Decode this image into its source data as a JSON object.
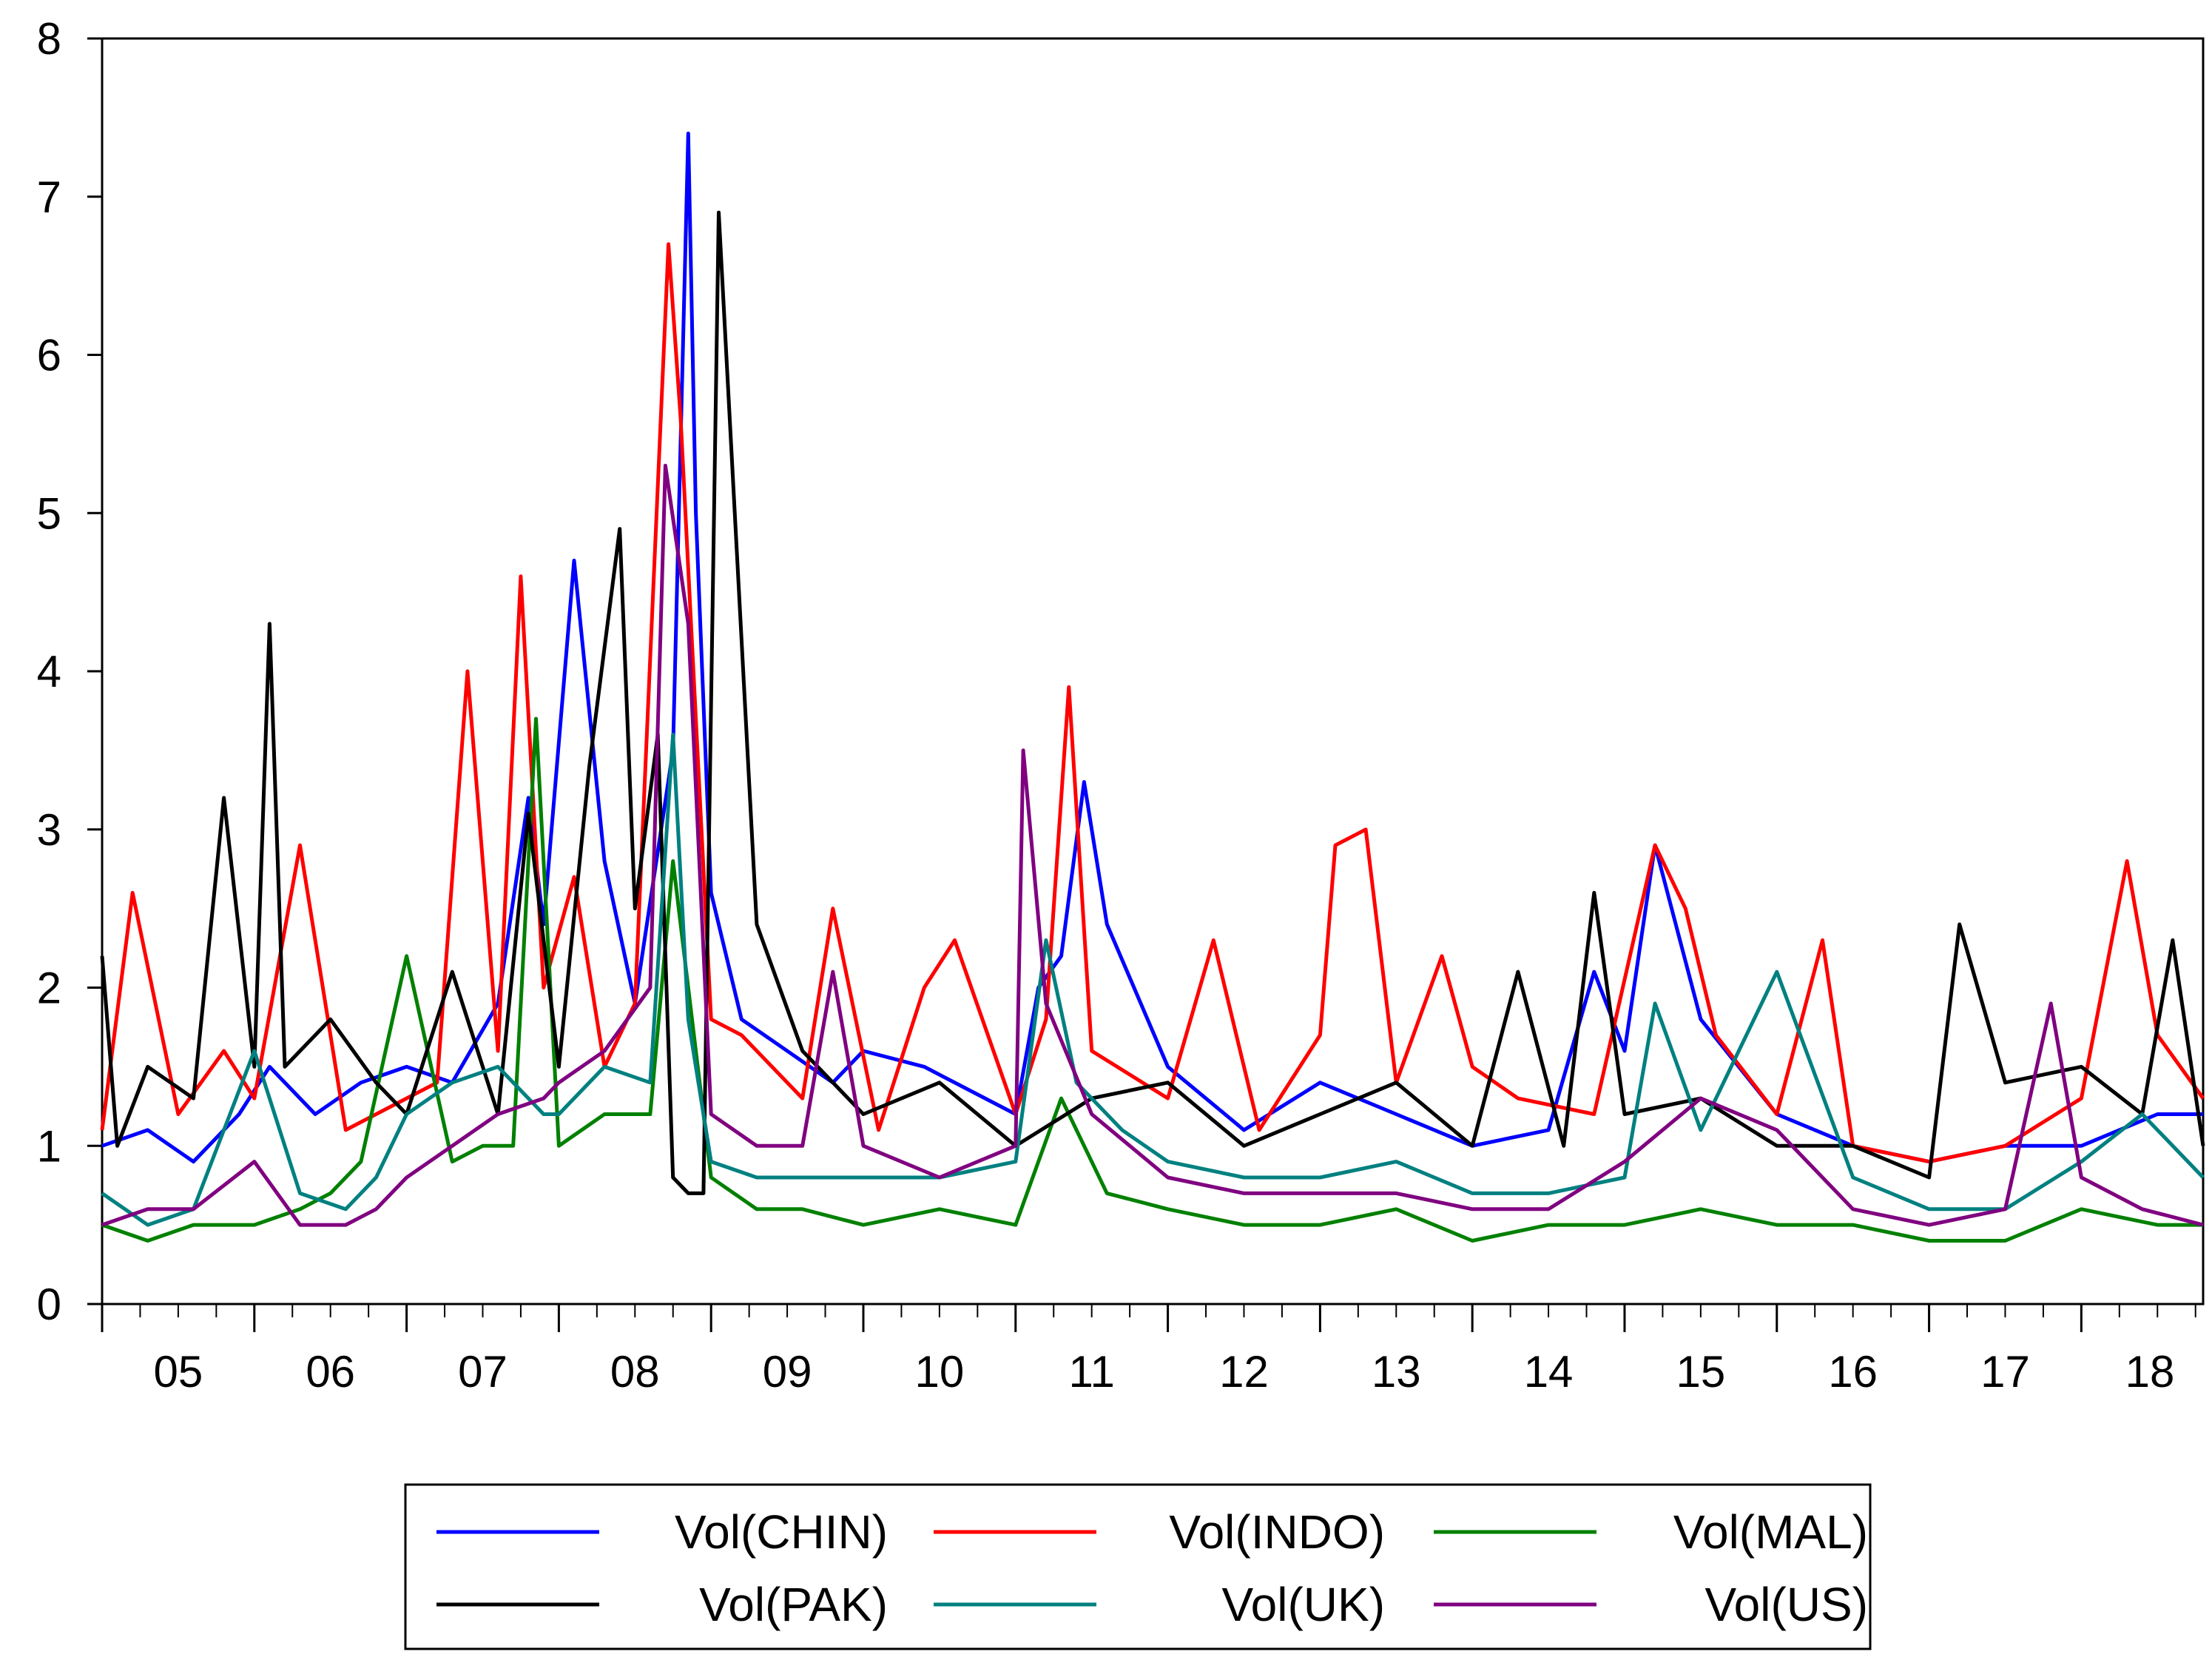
{
  "chart_data": {
    "type": "line",
    "title": "",
    "xlabel": "",
    "ylabel": "",
    "ylim": [
      0,
      8
    ],
    "y_ticks": [
      "0",
      "1",
      "2",
      "3",
      "4",
      "5",
      "6",
      "7",
      "8"
    ],
    "x_range": [
      2005.0,
      2018.8
    ],
    "x_tick_labels": [
      "05",
      "06",
      "07",
      "08",
      "09",
      "10",
      "11",
      "12",
      "13",
      "14",
      "15",
      "16",
      "17",
      "18"
    ],
    "grid": false,
    "legend_position": "bottom",
    "series": [
      {
        "name": "Vol(CHIN)",
        "color": "#0000ff",
        "x": [
          2005.0,
          2005.3,
          2005.6,
          2005.9,
          2006.1,
          2006.4,
          2006.7,
          2007.0,
          2007.3,
          2007.6,
          2007.8,
          2007.9,
          2008.1,
          2008.3,
          2008.5,
          2008.75,
          2008.85,
          2008.9,
          2009.0,
          2009.2,
          2009.5,
          2009.8,
          2010.0,
          2010.4,
          2010.8,
          2011.0,
          2011.15,
          2011.3,
          2011.45,
          2011.6,
          2012.0,
          2012.5,
          2013.0,
          2013.5,
          2014.0,
          2014.5,
          2014.8,
          2015.0,
          2015.2,
          2015.5,
          2016.0,
          2016.5,
          2017.0,
          2017.5,
          2018.0,
          2018.5,
          2018.8
        ],
        "y": [
          1.0,
          1.1,
          0.9,
          1.2,
          1.5,
          1.2,
          1.4,
          1.5,
          1.4,
          1.9,
          3.2,
          2.4,
          4.7,
          2.8,
          1.9,
          3.5,
          7.4,
          5.0,
          2.6,
          1.8,
          1.6,
          1.4,
          1.6,
          1.5,
          1.3,
          1.2,
          2.0,
          2.2,
          3.3,
          2.4,
          1.5,
          1.1,
          1.4,
          1.2,
          1.0,
          1.1,
          2.1,
          1.6,
          2.9,
          1.8,
          1.2,
          1.0,
          0.9,
          1.0,
          1.0,
          1.2,
          1.2
        ]
      },
      {
        "name": "Vol(INDO)",
        "color": "#ff0000",
        "x": [
          2005.0,
          2005.2,
          2005.5,
          2005.8,
          2006.0,
          2006.3,
          2006.6,
          2007.0,
          2007.2,
          2007.4,
          2007.6,
          2007.75,
          2007.9,
          2008.1,
          2008.3,
          2008.5,
          2008.72,
          2008.8,
          2009.0,
          2009.2,
          2009.6,
          2009.8,
          2010.1,
          2010.4,
          2010.6,
          2011.0,
          2011.2,
          2011.35,
          2011.5,
          2012.0,
          2012.3,
          2012.6,
          2013.0,
          2013.1,
          2013.3,
          2013.5,
          2013.8,
          2014.0,
          2014.3,
          2014.8,
          2015.2,
          2015.4,
          2015.6,
          2016.0,
          2016.3,
          2016.5,
          2017.0,
          2017.5,
          2018.0,
          2018.3,
          2018.5,
          2018.8
        ],
        "y": [
          1.1,
          2.6,
          1.2,
          1.6,
          1.3,
          2.9,
          1.1,
          1.3,
          1.4,
          4.0,
          1.6,
          4.6,
          2.0,
          2.7,
          1.5,
          1.9,
          6.7,
          5.6,
          1.8,
          1.7,
          1.3,
          2.5,
          1.1,
          2.0,
          2.3,
          1.2,
          1.8,
          3.9,
          1.6,
          1.3,
          2.3,
          1.1,
          1.7,
          2.9,
          3.0,
          1.4,
          2.2,
          1.5,
          1.3,
          1.2,
          2.9,
          2.5,
          1.7,
          1.2,
          2.3,
          1.0,
          0.9,
          1.0,
          1.3,
          2.8,
          1.7,
          1.3
        ]
      },
      {
        "name": "Vol(MAL)",
        "color": "#008000",
        "x": [
          2005.0,
          2005.3,
          2005.6,
          2006.0,
          2006.3,
          2006.5,
          2006.7,
          2007.0,
          2007.3,
          2007.5,
          2007.7,
          2007.85,
          2008.0,
          2008.3,
          2008.6,
          2008.75,
          2008.9,
          2009.0,
          2009.3,
          2009.6,
          2010.0,
          2010.5,
          2011.0,
          2011.3,
          2011.6,
          2012.0,
          2012.5,
          2013.0,
          2013.5,
          2014.0,
          2014.5,
          2015.0,
          2015.5,
          2016.0,
          2016.5,
          2017.0,
          2017.5,
          2018.0,
          2018.5,
          2018.8
        ],
        "y": [
          0.5,
          0.4,
          0.5,
          0.5,
          0.6,
          0.7,
          0.9,
          2.2,
          0.9,
          1.0,
          1.0,
          3.7,
          1.0,
          1.2,
          1.2,
          2.8,
          1.6,
          0.8,
          0.6,
          0.6,
          0.5,
          0.6,
          0.5,
          1.3,
          0.7,
          0.6,
          0.5,
          0.5,
          0.6,
          0.4,
          0.5,
          0.5,
          0.6,
          0.5,
          0.5,
          0.4,
          0.4,
          0.6,
          0.5,
          0.5
        ]
      },
      {
        "name": "Vol(PAK)",
        "color": "#000000",
        "x": [
          2005.0,
          2005.1,
          2005.3,
          2005.6,
          2005.8,
          2006.0,
          2006.1,
          2006.2,
          2006.5,
          2006.8,
          2007.0,
          2007.3,
          2007.6,
          2007.8,
          2008.0,
          2008.2,
          2008.4,
          2008.5,
          2008.65,
          2008.75,
          2008.85,
          2008.95,
          2009.05,
          2009.3,
          2009.6,
          2010.0,
          2010.5,
          2011.0,
          2011.5,
          2012.0,
          2012.5,
          2013.0,
          2013.5,
          2014.0,
          2014.3,
          2014.6,
          2014.8,
          2015.0,
          2015.5,
          2016.0,
          2016.5,
          2017.0,
          2017.2,
          2017.5,
          2018.0,
          2018.4,
          2018.6,
          2018.8
        ],
        "y": [
          2.2,
          1.0,
          1.5,
          1.3,
          3.2,
          1.5,
          4.3,
          1.5,
          1.8,
          1.4,
          1.2,
          2.1,
          1.2,
          3.1,
          1.5,
          3.4,
          4.9,
          2.5,
          3.6,
          0.8,
          0.7,
          0.7,
          6.9,
          2.4,
          1.6,
          1.2,
          1.4,
          1.0,
          1.3,
          1.4,
          1.0,
          1.2,
          1.4,
          1.0,
          2.1,
          1.0,
          2.6,
          1.2,
          1.3,
          1.0,
          1.0,
          0.8,
          2.4,
          1.4,
          1.5,
          1.2,
          2.3,
          1.0
        ]
      },
      {
        "name": "Vol(UK)",
        "color": "#008080",
        "x": [
          2005.0,
          2005.3,
          2005.6,
          2006.0,
          2006.3,
          2006.6,
          2006.8,
          2007.0,
          2007.3,
          2007.6,
          2007.9,
          2008.0,
          2008.3,
          2008.6,
          2008.75,
          2008.85,
          2009.0,
          2009.3,
          2009.6,
          2010.0,
          2010.5,
          2011.0,
          2011.2,
          2011.4,
          2011.7,
          2012.0,
          2012.5,
          2013.0,
          2013.5,
          2014.0,
          2014.5,
          2015.0,
          2015.2,
          2015.5,
          2016.0,
          2016.5,
          2017.0,
          2017.5,
          2018.0,
          2018.4,
          2018.8
        ],
        "y": [
          0.7,
          0.5,
          0.6,
          1.6,
          0.7,
          0.6,
          0.8,
          1.2,
          1.4,
          1.5,
          1.2,
          1.2,
          1.5,
          1.4,
          3.6,
          1.8,
          0.9,
          0.8,
          0.8,
          0.8,
          0.8,
          0.9,
          2.3,
          1.4,
          1.1,
          0.9,
          0.8,
          0.8,
          0.9,
          0.7,
          0.7,
          0.8,
          1.9,
          1.1,
          2.1,
          0.8,
          0.6,
          0.6,
          0.9,
          1.2,
          0.8
        ]
      },
      {
        "name": "Vol(US)",
        "color": "#800080",
        "x": [
          2005.0,
          2005.3,
          2005.6,
          2006.0,
          2006.3,
          2006.6,
          2006.8,
          2007.0,
          2007.3,
          2007.6,
          2007.9,
          2008.0,
          2008.3,
          2008.6,
          2008.7,
          2008.85,
          2009.0,
          2009.3,
          2009.6,
          2009.8,
          2010.0,
          2010.5,
          2011.0,
          2011.05,
          2011.2,
          2011.5,
          2012.0,
          2012.5,
          2013.0,
          2013.5,
          2014.0,
          2014.5,
          2015.0,
          2015.5,
          2016.0,
          2016.5,
          2017.0,
          2017.5,
          2017.8,
          2018.0,
          2018.4,
          2018.8
        ],
        "y": [
          0.5,
          0.6,
          0.6,
          0.9,
          0.5,
          0.5,
          0.6,
          0.8,
          1.0,
          1.2,
          1.3,
          1.4,
          1.6,
          2.0,
          5.3,
          4.3,
          1.2,
          1.0,
          1.0,
          2.1,
          1.0,
          0.8,
          1.0,
          3.5,
          1.9,
          1.2,
          0.8,
          0.7,
          0.7,
          0.7,
          0.6,
          0.6,
          0.9,
          1.3,
          1.1,
          0.6,
          0.5,
          0.6,
          1.9,
          0.8,
          0.6,
          0.5
        ]
      }
    ]
  }
}
